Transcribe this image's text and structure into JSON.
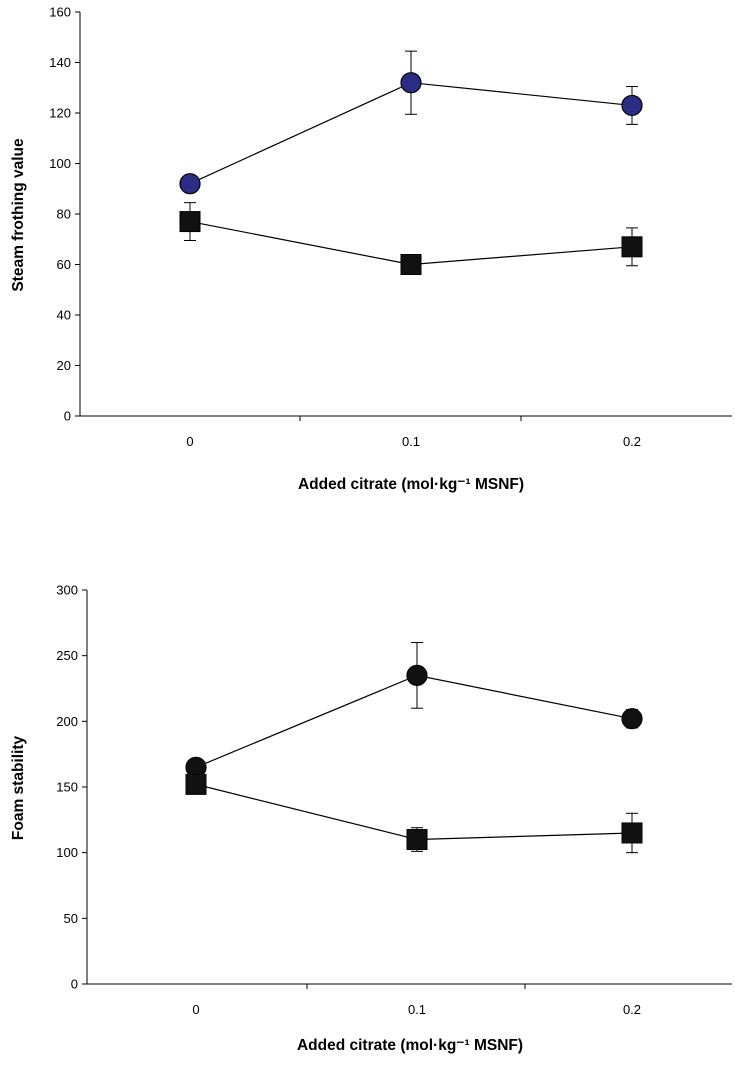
{
  "chart_data": [
    {
      "type": "line",
      "xlabel": "Added citrate (mol·kg⁻¹ MSNF)",
      "ylabel": "Steam frothing value",
      "categories": [
        "0",
        "0.1",
        "0.2"
      ],
      "ylim": [
        0,
        160
      ],
      "yticks": [
        "0",
        "20",
        "40",
        "60",
        "80",
        "100",
        "120",
        "140",
        "160"
      ],
      "grid": false,
      "series": [
        {
          "marker": "circle",
          "color": "#2b2d84",
          "values": [
            92,
            132,
            123
          ],
          "error": [
            null,
            12.5,
            7.5
          ]
        },
        {
          "marker": "square",
          "color": "#111111",
          "values": [
            77,
            60,
            67
          ],
          "error": [
            7.5,
            null,
            7.5
          ]
        }
      ]
    },
    {
      "type": "line",
      "xlabel": "Added citrate (mol·kg⁻¹ MSNF)",
      "ylabel": "Foam stability",
      "categories": [
        "0",
        "0.1",
        "0.2"
      ],
      "ylim": [
        0,
        300
      ],
      "yticks": [
        "0",
        "50",
        "100",
        "150",
        "200",
        "250",
        "300"
      ],
      "grid": false,
      "series": [
        {
          "marker": "circle",
          "color": "#111111",
          "values": [
            165,
            235,
            202
          ],
          "error": [
            null,
            25,
            7
          ]
        },
        {
          "marker": "square",
          "color": "#111111",
          "values": [
            152,
            110,
            115
          ],
          "error": [
            null,
            9,
            15
          ]
        }
      ]
    }
  ]
}
